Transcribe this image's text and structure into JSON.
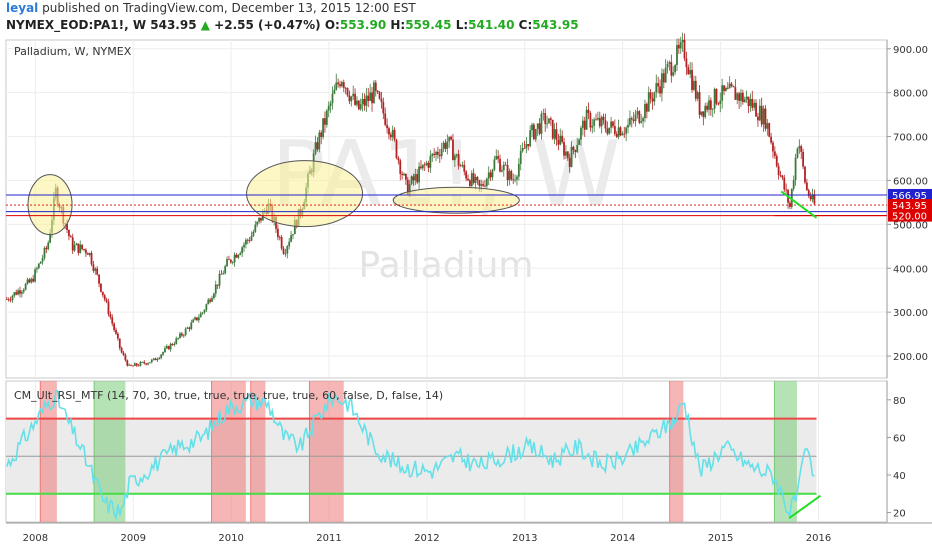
{
  "header": {
    "user": "leyal",
    "published": "published on TradingView.com, December 13, 2015 12:00 EST",
    "symbol": "NYMEX_EOD:PA1!, W",
    "last": "543.95",
    "change": "+2.55 (+0.47%)",
    "o_label": "O:",
    "o_value": "553.90",
    "h_label": "H:",
    "h_value": "559.45",
    "l_label": "L:",
    "l_value": "541.40",
    "c_label": "C:",
    "c_value": "543.95",
    "up_icon": "triangle-up-icon"
  },
  "colors": {
    "up": "#26a69a",
    "up_candle": "#3c7a3c",
    "down_candle": "#b22222",
    "rsi_line": "#64e0e8",
    "upper_band": "#ee4444",
    "lower_band": "#44dd44",
    "hline_blue": "#2222cc",
    "support_red": "#dd0000"
  },
  "chart_data": [
    {
      "type": "line",
      "panel": "price",
      "title": "Palladium, W, NYMEX",
      "watermark_symbol": "PA1!, W",
      "watermark_name": "Palladium",
      "x": [
        "2007-09",
        "2007-12",
        "2008-02",
        "2008-03",
        "2008-05",
        "2008-07",
        "2008-09",
        "2008-11",
        "2008-12",
        "2009-03",
        "2009-06",
        "2009-09",
        "2009-12",
        "2010-03",
        "2010-05",
        "2010-07",
        "2010-09",
        "2010-11",
        "2011-01",
        "2011-02",
        "2011-04",
        "2011-06",
        "2011-08",
        "2011-10",
        "2012-01",
        "2012-03",
        "2012-05",
        "2012-07",
        "2012-09",
        "2012-11",
        "2013-01",
        "2013-03",
        "2013-06",
        "2013-08",
        "2013-11",
        "2014-01",
        "2014-03",
        "2014-05",
        "2014-07",
        "2014-08",
        "2014-10",
        "2014-12",
        "2015-02",
        "2015-04",
        "2015-06",
        "2015-08",
        "2015-09",
        "2015-10",
        "2015-11",
        "2015-12"
      ],
      "values": [
        330,
        370,
        450,
        575,
        450,
        440,
        330,
        210,
        175,
        190,
        240,
        300,
        410,
        475,
        545,
        440,
        530,
        680,
        790,
        840,
        760,
        800,
        720,
        580,
        650,
        690,
        620,
        580,
        650,
        600,
        700,
        740,
        650,
        740,
        720,
        720,
        760,
        820,
        880,
        900,
        760,
        790,
        800,
        780,
        740,
        600,
        540,
        700,
        580,
        544
      ],
      "yticks": [
        200,
        300,
        400,
        500,
        600,
        700,
        800,
        900
      ],
      "ytick_labels": [
        "200.00",
        "300.00",
        "400.00",
        "500.00",
        "600.00",
        "700.00",
        "800.00",
        "900.00"
      ],
      "ylim": [
        150,
        920
      ],
      "hlines": [
        {
          "value": 566.95,
          "label": "566.95",
          "color": "#2222cc"
        },
        {
          "value": 543.95,
          "label": "543.95",
          "color": "#dd0000"
        },
        {
          "value": 529,
          "label": "",
          "color": "#2222cc"
        },
        {
          "value": 520.0,
          "label": "520.00",
          "color": "#dd0000"
        }
      ],
      "grid": true
    },
    {
      "type": "line",
      "panel": "indicator",
      "title": "CM_Ult_RSI_MTF (14, 70, 30, true, true, true, true, true, 60, false, D, false, 14)",
      "x": [
        "2007-09",
        "2007-12",
        "2008-02",
        "2008-03",
        "2008-06",
        "2008-09",
        "2008-11",
        "2008-12",
        "2009-03",
        "2009-06",
        "2009-09",
        "2009-12",
        "2010-03",
        "2010-05",
        "2010-07",
        "2010-09",
        "2010-11",
        "2011-01",
        "2011-03",
        "2011-06",
        "2011-09",
        "2012-01",
        "2012-04",
        "2012-07",
        "2012-10",
        "2013-01",
        "2013-04",
        "2013-07",
        "2013-10",
        "2014-01",
        "2014-04",
        "2014-07",
        "2014-08",
        "2014-10",
        "2015-01",
        "2015-04",
        "2015-07",
        "2015-09",
        "2015-10",
        "2015-11",
        "2015-12"
      ],
      "values": [
        45,
        65,
        78,
        82,
        55,
        25,
        20,
        35,
        45,
        55,
        60,
        75,
        80,
        78,
        60,
        55,
        70,
        82,
        78,
        55,
        45,
        42,
        50,
        45,
        50,
        55,
        48,
        55,
        45,
        50,
        60,
        70,
        80,
        42,
        55,
        45,
        40,
        20,
        30,
        55,
        36
      ],
      "upper_band": 70,
      "lower_band": 30,
      "yticks": [
        20,
        40,
        60,
        80
      ],
      "ytick_labels": [
        "20",
        "40",
        "60",
        "80"
      ],
      "ylim": [
        15,
        90
      ]
    }
  ],
  "xaxis": {
    "ticks": [
      "2008",
      "2009",
      "2010",
      "2011",
      "2012",
      "2013",
      "2014",
      "2015",
      "2016"
    ]
  }
}
